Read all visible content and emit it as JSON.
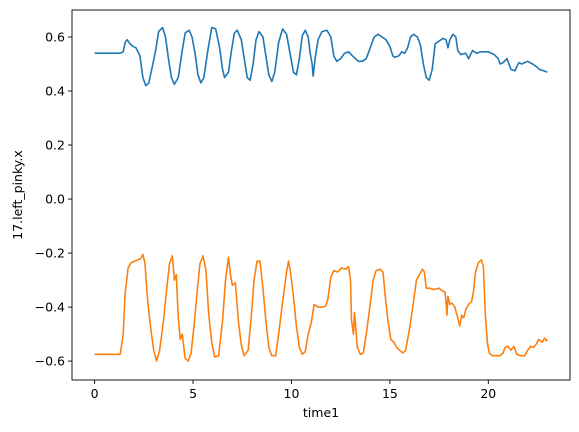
{
  "chart_data": {
    "type": "line",
    "title": "",
    "xlabel": "time1",
    "ylabel": "17.left_pinky.x",
    "xlim": [
      -1.15,
      24.15
    ],
    "ylim": [
      -0.67,
      0.7
    ],
    "xticks": [
      0,
      5,
      10,
      15,
      20
    ],
    "yticks": [
      -0.6,
      -0.4,
      -0.2,
      0.0,
      0.2,
      0.4,
      0.6
    ],
    "ytick_labels": [
      "−0.6",
      "−0.4",
      "−0.2",
      "0.0",
      "0.2",
      "0.4",
      "0.6"
    ],
    "grid": false,
    "legend": "none",
    "series": [
      {
        "color": "#1f77b4",
        "points": [
          [
            0.0,
            0.54
          ],
          [
            1.3,
            0.54
          ],
          [
            1.45,
            0.545
          ],
          [
            1.55,
            0.58
          ],
          [
            1.65,
            0.59
          ],
          [
            1.8,
            0.575
          ],
          [
            1.95,
            0.565
          ],
          [
            2.1,
            0.56
          ],
          [
            2.3,
            0.53
          ],
          [
            2.45,
            0.45
          ],
          [
            2.6,
            0.42
          ],
          [
            2.75,
            0.43
          ],
          [
            2.9,
            0.48
          ],
          [
            3.1,
            0.55
          ],
          [
            3.25,
            0.62
          ],
          [
            3.45,
            0.635
          ],
          [
            3.6,
            0.6
          ],
          [
            3.75,
            0.52
          ],
          [
            3.9,
            0.45
          ],
          [
            4.05,
            0.425
          ],
          [
            4.25,
            0.45
          ],
          [
            4.45,
            0.55
          ],
          [
            4.6,
            0.615
          ],
          [
            4.8,
            0.625
          ],
          [
            4.95,
            0.6
          ],
          [
            5.1,
            0.54
          ],
          [
            5.25,
            0.46
          ],
          [
            5.4,
            0.43
          ],
          [
            5.55,
            0.45
          ],
          [
            5.75,
            0.55
          ],
          [
            5.95,
            0.635
          ],
          [
            6.15,
            0.63
          ],
          [
            6.35,
            0.56
          ],
          [
            6.5,
            0.48
          ],
          [
            6.6,
            0.45
          ],
          [
            6.8,
            0.47
          ],
          [
            6.95,
            0.55
          ],
          [
            7.1,
            0.615
          ],
          [
            7.25,
            0.625
          ],
          [
            7.45,
            0.59
          ],
          [
            7.6,
            0.52
          ],
          [
            7.75,
            0.45
          ],
          [
            7.9,
            0.44
          ],
          [
            8.05,
            0.5
          ],
          [
            8.2,
            0.59
          ],
          [
            8.35,
            0.62
          ],
          [
            8.55,
            0.6
          ],
          [
            8.7,
            0.53
          ],
          [
            8.85,
            0.46
          ],
          [
            9.0,
            0.435
          ],
          [
            9.15,
            0.47
          ],
          [
            9.35,
            0.58
          ],
          [
            9.55,
            0.63
          ],
          [
            9.75,
            0.61
          ],
          [
            9.95,
            0.53
          ],
          [
            10.1,
            0.47
          ],
          [
            10.25,
            0.46
          ],
          [
            10.4,
            0.52
          ],
          [
            10.55,
            0.605
          ],
          [
            10.7,
            0.625
          ],
          [
            10.85,
            0.6
          ],
          [
            10.95,
            0.54
          ],
          [
            11.05,
            0.5
          ],
          [
            11.1,
            0.455
          ],
          [
            11.2,
            0.52
          ],
          [
            11.35,
            0.59
          ],
          [
            11.55,
            0.62
          ],
          [
            11.8,
            0.625
          ],
          [
            12.0,
            0.6
          ],
          [
            12.15,
            0.53
          ],
          [
            12.3,
            0.51
          ],
          [
            12.5,
            0.52
          ],
          [
            12.7,
            0.54
          ],
          [
            12.9,
            0.545
          ],
          [
            13.1,
            0.53
          ],
          [
            13.25,
            0.52
          ],
          [
            13.4,
            0.51
          ],
          [
            13.6,
            0.51
          ],
          [
            13.8,
            0.52
          ],
          [
            14.0,
            0.56
          ],
          [
            14.2,
            0.6
          ],
          [
            14.4,
            0.61
          ],
          [
            14.6,
            0.6
          ],
          [
            14.8,
            0.59
          ],
          [
            15.0,
            0.565
          ],
          [
            15.15,
            0.53
          ],
          [
            15.25,
            0.525
          ],
          [
            15.45,
            0.53
          ],
          [
            15.6,
            0.545
          ],
          [
            15.75,
            0.54
          ],
          [
            15.9,
            0.56
          ],
          [
            16.05,
            0.6
          ],
          [
            16.2,
            0.61
          ],
          [
            16.4,
            0.6
          ],
          [
            16.55,
            0.57
          ],
          [
            16.7,
            0.5
          ],
          [
            16.85,
            0.45
          ],
          [
            17.0,
            0.44
          ],
          [
            17.15,
            0.48
          ],
          [
            17.3,
            0.575
          ],
          [
            17.5,
            0.585
          ],
          [
            17.7,
            0.595
          ],
          [
            17.85,
            0.59
          ],
          [
            17.95,
            0.56
          ],
          [
            18.05,
            0.59
          ],
          [
            18.2,
            0.61
          ],
          [
            18.35,
            0.6
          ],
          [
            18.45,
            0.55
          ],
          [
            18.6,
            0.535
          ],
          [
            18.85,
            0.54
          ],
          [
            19.0,
            0.52
          ],
          [
            19.2,
            0.55
          ],
          [
            19.4,
            0.54
          ],
          [
            19.6,
            0.545
          ],
          [
            20.0,
            0.545
          ],
          [
            20.3,
            0.535
          ],
          [
            20.5,
            0.52
          ],
          [
            20.6,
            0.5
          ],
          [
            20.75,
            0.505
          ],
          [
            20.95,
            0.52
          ],
          [
            21.15,
            0.48
          ],
          [
            21.35,
            0.475
          ],
          [
            21.55,
            0.505
          ],
          [
            21.7,
            0.5
          ],
          [
            22.0,
            0.51
          ],
          [
            22.25,
            0.5
          ],
          [
            22.45,
            0.49
          ],
          [
            22.6,
            0.48
          ],
          [
            22.8,
            0.475
          ],
          [
            23.0,
            0.47
          ]
        ]
      },
      {
        "color": "#ff7f0e",
        "points": [
          [
            0.0,
            -0.575
          ],
          [
            1.2,
            -0.575
          ],
          [
            1.3,
            -0.575
          ],
          [
            1.45,
            -0.5
          ],
          [
            1.55,
            -0.35
          ],
          [
            1.7,
            -0.255
          ],
          [
            1.85,
            -0.235
          ],
          [
            2.05,
            -0.23
          ],
          [
            2.2,
            -0.225
          ],
          [
            2.35,
            -0.22
          ],
          [
            2.45,
            -0.205
          ],
          [
            2.55,
            -0.235
          ],
          [
            2.7,
            -0.38
          ],
          [
            2.85,
            -0.48
          ],
          [
            3.0,
            -0.56
          ],
          [
            3.15,
            -0.6
          ],
          [
            3.3,
            -0.56
          ],
          [
            3.5,
            -0.45
          ],
          [
            3.65,
            -0.34
          ],
          [
            3.8,
            -0.24
          ],
          [
            3.95,
            -0.21
          ],
          [
            4.05,
            -0.3
          ],
          [
            4.15,
            -0.28
          ],
          [
            4.25,
            -0.44
          ],
          [
            4.35,
            -0.52
          ],
          [
            4.45,
            -0.5
          ],
          [
            4.6,
            -0.59
          ],
          [
            4.75,
            -0.6
          ],
          [
            4.9,
            -0.57
          ],
          [
            5.05,
            -0.47
          ],
          [
            5.2,
            -0.35
          ],
          [
            5.35,
            -0.24
          ],
          [
            5.5,
            -0.21
          ],
          [
            5.65,
            -0.26
          ],
          [
            5.8,
            -0.43
          ],
          [
            5.95,
            -0.53
          ],
          [
            6.1,
            -0.585
          ],
          [
            6.3,
            -0.58
          ],
          [
            6.5,
            -0.45
          ],
          [
            6.65,
            -0.3
          ],
          [
            6.8,
            -0.215
          ],
          [
            6.9,
            -0.28
          ],
          [
            7.0,
            -0.32
          ],
          [
            7.15,
            -0.31
          ],
          [
            7.3,
            -0.45
          ],
          [
            7.45,
            -0.54
          ],
          [
            7.6,
            -0.58
          ],
          [
            7.8,
            -0.56
          ],
          [
            7.95,
            -0.44
          ],
          [
            8.1,
            -0.3
          ],
          [
            8.25,
            -0.23
          ],
          [
            8.4,
            -0.23
          ],
          [
            8.55,
            -0.33
          ],
          [
            8.7,
            -0.45
          ],
          [
            8.85,
            -0.55
          ],
          [
            9.0,
            -0.58
          ],
          [
            9.2,
            -0.58
          ],
          [
            9.35,
            -0.5
          ],
          [
            9.55,
            -0.38
          ],
          [
            9.75,
            -0.27
          ],
          [
            9.85,
            -0.23
          ],
          [
            9.95,
            -0.27
          ],
          [
            10.1,
            -0.36
          ],
          [
            10.25,
            -0.47
          ],
          [
            10.4,
            -0.55
          ],
          [
            10.55,
            -0.575
          ],
          [
            10.7,
            -0.565
          ],
          [
            10.85,
            -0.5
          ],
          [
            11.0,
            -0.46
          ],
          [
            11.15,
            -0.39
          ],
          [
            11.35,
            -0.4
          ],
          [
            11.6,
            -0.4
          ],
          [
            11.75,
            -0.395
          ],
          [
            11.85,
            -0.37
          ],
          [
            12.0,
            -0.29
          ],
          [
            12.15,
            -0.265
          ],
          [
            12.35,
            -0.27
          ],
          [
            12.55,
            -0.255
          ],
          [
            12.75,
            -0.26
          ],
          [
            12.9,
            -0.25
          ],
          [
            13.0,
            -0.3
          ],
          [
            13.05,
            -0.45
          ],
          [
            13.15,
            -0.5
          ],
          [
            13.2,
            -0.42
          ],
          [
            13.35,
            -0.55
          ],
          [
            13.5,
            -0.575
          ],
          [
            13.65,
            -0.57
          ],
          [
            13.8,
            -0.5
          ],
          [
            14.0,
            -0.39
          ],
          [
            14.15,
            -0.3
          ],
          [
            14.3,
            -0.265
          ],
          [
            14.5,
            -0.26
          ],
          [
            14.65,
            -0.27
          ],
          [
            14.75,
            -0.35
          ],
          [
            14.9,
            -0.45
          ],
          [
            15.05,
            -0.52
          ],
          [
            15.2,
            -0.53
          ],
          [
            15.35,
            -0.55
          ],
          [
            15.5,
            -0.56
          ],
          [
            15.65,
            -0.57
          ],
          [
            15.8,
            -0.56
          ],
          [
            16.0,
            -0.48
          ],
          [
            16.2,
            -0.38
          ],
          [
            16.35,
            -0.3
          ],
          [
            16.5,
            -0.28
          ],
          [
            16.65,
            -0.26
          ],
          [
            16.75,
            -0.27
          ],
          [
            16.85,
            -0.33
          ],
          [
            17.0,
            -0.33
          ],
          [
            17.25,
            -0.335
          ],
          [
            17.5,
            -0.33
          ],
          [
            17.65,
            -0.34
          ],
          [
            17.8,
            -0.345
          ],
          [
            17.85,
            -0.38
          ],
          [
            17.9,
            -0.43
          ],
          [
            17.95,
            -0.36
          ],
          [
            18.05,
            -0.39
          ],
          [
            18.15,
            -0.385
          ],
          [
            18.3,
            -0.4
          ],
          [
            18.45,
            -0.44
          ],
          [
            18.55,
            -0.47
          ],
          [
            18.65,
            -0.43
          ],
          [
            18.75,
            -0.44
          ],
          [
            18.85,
            -0.41
          ],
          [
            19.0,
            -0.39
          ],
          [
            19.15,
            -0.38
          ],
          [
            19.25,
            -0.34
          ],
          [
            19.35,
            -0.27
          ],
          [
            19.5,
            -0.235
          ],
          [
            19.65,
            -0.225
          ],
          [
            19.75,
            -0.25
          ],
          [
            19.85,
            -0.43
          ],
          [
            19.95,
            -0.53
          ],
          [
            20.05,
            -0.57
          ],
          [
            20.2,
            -0.58
          ],
          [
            20.6,
            -0.58
          ],
          [
            20.75,
            -0.57
          ],
          [
            20.85,
            -0.55
          ],
          [
            21.0,
            -0.545
          ],
          [
            21.15,
            -0.56
          ],
          [
            21.3,
            -0.545
          ],
          [
            21.45,
            -0.575
          ],
          [
            21.65,
            -0.58
          ],
          [
            21.85,
            -0.58
          ],
          [
            22.0,
            -0.56
          ],
          [
            22.15,
            -0.545
          ],
          [
            22.3,
            -0.55
          ],
          [
            22.45,
            -0.535
          ],
          [
            22.55,
            -0.52
          ],
          [
            22.65,
            -0.525
          ],
          [
            22.75,
            -0.53
          ],
          [
            22.85,
            -0.515
          ],
          [
            22.95,
            -0.525
          ],
          [
            23.0,
            -0.52
          ]
        ]
      }
    ]
  }
}
